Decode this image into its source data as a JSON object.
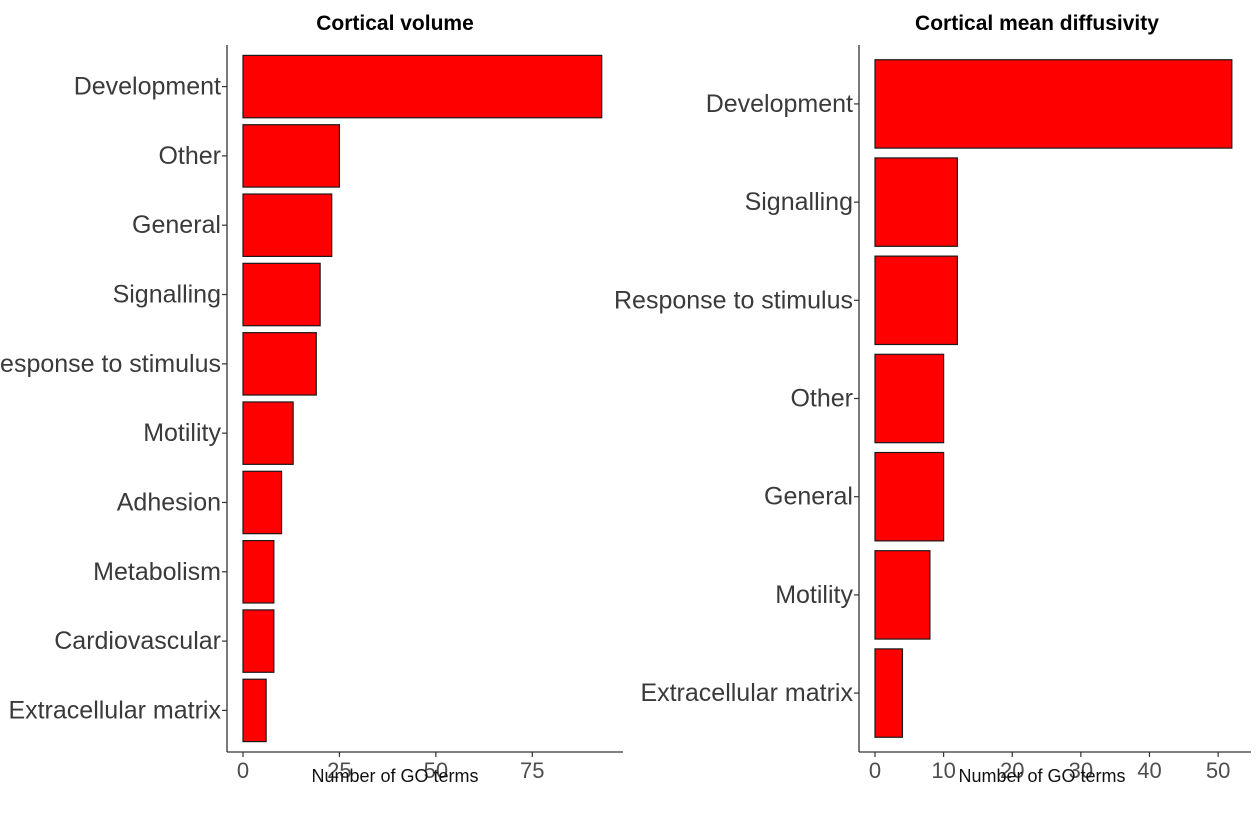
{
  "chart_data": [
    {
      "type": "bar",
      "orientation": "horizontal",
      "title": "Cortical volume",
      "xlabel": "Number of GO terms",
      "ylabel": "",
      "categories": [
        "Development",
        "Other",
        "General",
        "Signalling",
        "Response to stimulus",
        "Motility",
        "Adhesion",
        "Metabolism",
        "Cardiovascular",
        "Extracellular matrix"
      ],
      "values": [
        93,
        25,
        23,
        20,
        19,
        13,
        10,
        8,
        8,
        6
      ],
      "xlim": [
        0,
        98
      ],
      "xticks": [
        0,
        25,
        50,
        75
      ],
      "grid": false,
      "bar_color": "#ff0000"
    },
    {
      "type": "bar",
      "orientation": "horizontal",
      "title": "Cortical mean diffusivity",
      "xlabel": "Number of GO terms",
      "ylabel": "",
      "categories": [
        "Development",
        "Signalling",
        "Response to stimulus",
        "Other",
        "General",
        "Motility",
        "Extracellular matrix"
      ],
      "values": [
        52,
        12,
        12,
        10,
        10,
        8,
        4
      ],
      "xlim": [
        0,
        54.5
      ],
      "xticks": [
        0,
        10,
        20,
        30,
        40,
        50
      ],
      "grid": false,
      "bar_color": "#ff0000"
    }
  ]
}
